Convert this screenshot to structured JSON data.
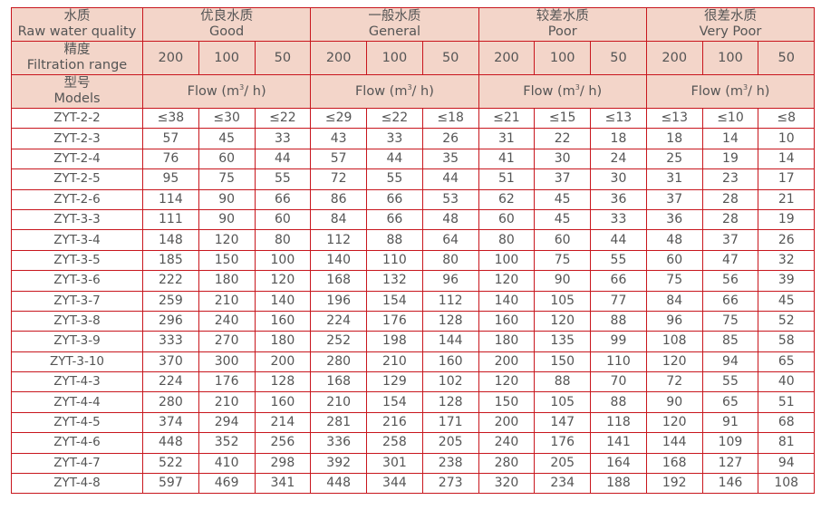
{
  "header": {
    "quality_label_cn": "水质",
    "quality_label_en": "Raw water quality",
    "range_label_cn": "精度",
    "range_label_en": "Filtration range",
    "model_label_cn": "型号",
    "model_label_en": "Models",
    "flow_prefix": "Flow (m",
    "flow_sup": "3",
    "flow_suffix": "/ h)",
    "groups": [
      {
        "cn": "优良水质",
        "en": "Good"
      },
      {
        "cn": "一般水质",
        "en": "General"
      },
      {
        "cn": "较差水质",
        "en": "Poor"
      },
      {
        "cn": "很差水质",
        "en": "Very Poor"
      }
    ],
    "ranges": [
      "200",
      "100",
      "50"
    ]
  },
  "colors": {
    "border": "#c8161d",
    "header_bg": "#f3d5c9",
    "text": "#555555"
  },
  "rows": [
    {
      "model": "ZYT-2-2",
      "values": [
        "≤38",
        "≤30",
        "≤22",
        "≤29",
        "≤22",
        "≤18",
        "≤21",
        "≤15",
        "≤13",
        "≤13",
        "≤10",
        "≤8"
      ]
    },
    {
      "model": "ZYT-2-3",
      "values": [
        "57",
        "45",
        "33",
        "43",
        "33",
        "26",
        "31",
        "22",
        "18",
        "18",
        "14",
        "10"
      ]
    },
    {
      "model": "ZYT-2-4",
      "values": [
        "76",
        "60",
        "44",
        "57",
        "44",
        "35",
        "41",
        "30",
        "24",
        "25",
        "19",
        "14"
      ]
    },
    {
      "model": "ZYT-2-5",
      "values": [
        "95",
        "75",
        "55",
        "72",
        "55",
        "44",
        "51",
        "37",
        "30",
        "31",
        "23",
        "17"
      ]
    },
    {
      "model": "ZYT-2-6",
      "values": [
        "114",
        "90",
        "66",
        "86",
        "66",
        "53",
        "62",
        "45",
        "36",
        "37",
        "28",
        "21"
      ]
    },
    {
      "model": "ZYT-3-3",
      "values": [
        "111",
        "90",
        "60",
        "84",
        "66",
        "48",
        "60",
        "45",
        "33",
        "36",
        "28",
        "19"
      ]
    },
    {
      "model": "ZYT-3-4",
      "values": [
        "148",
        "120",
        "80",
        "112",
        "88",
        "64",
        "80",
        "60",
        "44",
        "48",
        "37",
        "26"
      ]
    },
    {
      "model": "ZYT-3-5",
      "values": [
        "185",
        "150",
        "100",
        "140",
        "110",
        "80",
        "100",
        "75",
        "55",
        "60",
        "47",
        "32"
      ]
    },
    {
      "model": "ZYT-3-6",
      "values": [
        "222",
        "180",
        "120",
        "168",
        "132",
        "96",
        "120",
        "90",
        "66",
        "75",
        "56",
        "39"
      ]
    },
    {
      "model": "ZYT-3-7",
      "values": [
        "259",
        "210",
        "140",
        "196",
        "154",
        "112",
        "140",
        "105",
        "77",
        "84",
        "66",
        "45"
      ]
    },
    {
      "model": "ZYT-3-8",
      "values": [
        "296",
        "240",
        "160",
        "224",
        "176",
        "128",
        "160",
        "120",
        "88",
        "96",
        "75",
        "52"
      ]
    },
    {
      "model": "ZYT-3-9",
      "values": [
        "333",
        "270",
        "180",
        "252",
        "198",
        "144",
        "180",
        "135",
        "99",
        "108",
        "85",
        "58"
      ]
    },
    {
      "model": "ZYT-3-10",
      "values": [
        "370",
        "300",
        "200",
        "280",
        "210",
        "160",
        "200",
        "150",
        "110",
        "120",
        "94",
        "65"
      ]
    },
    {
      "model": "ZYT-4-3",
      "values": [
        "224",
        "176",
        "128",
        "168",
        "129",
        "102",
        "120",
        "88",
        "70",
        "72",
        "55",
        "40"
      ]
    },
    {
      "model": "ZYT-4-4",
      "values": [
        "280",
        "210",
        "160",
        "210",
        "154",
        "128",
        "150",
        "105",
        "88",
        "90",
        "65",
        "51"
      ]
    },
    {
      "model": "ZYT-4-5",
      "values": [
        "374",
        "294",
        "214",
        "281",
        "216",
        "171",
        "200",
        "147",
        "118",
        "120",
        "91",
        "68"
      ]
    },
    {
      "model": "ZYT-4-6",
      "values": [
        "448",
        "352",
        "256",
        "336",
        "258",
        "205",
        "240",
        "176",
        "141",
        "144",
        "109",
        "81"
      ]
    },
    {
      "model": "ZYT-4-7",
      "values": [
        "522",
        "410",
        "298",
        "392",
        "301",
        "238",
        "280",
        "205",
        "164",
        "168",
        "127",
        "94"
      ]
    },
    {
      "model": "ZYT-4-8",
      "values": [
        "597",
        "469",
        "341",
        "448",
        "344",
        "273",
        "320",
        "234",
        "188",
        "192",
        "146",
        "108"
      ]
    }
  ]
}
